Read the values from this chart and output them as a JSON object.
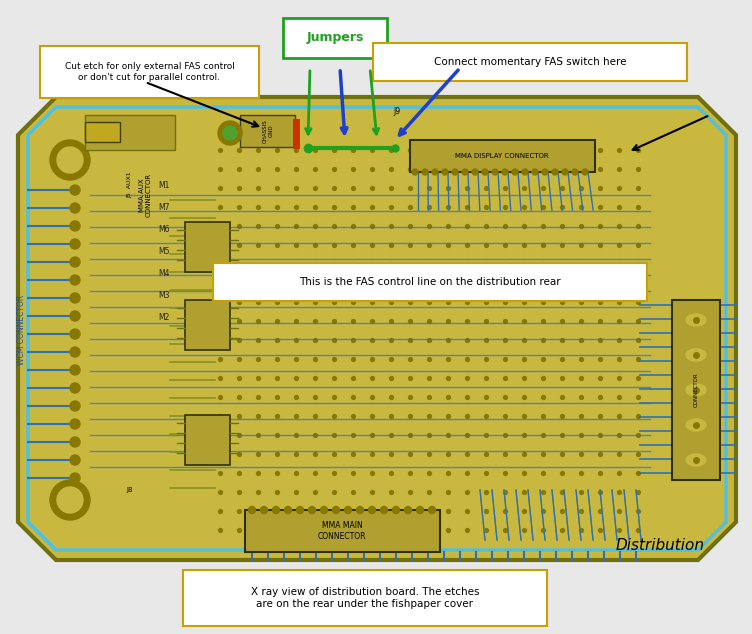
{
  "bg_color": "#e8e8e8",
  "board_color": "#c8b840",
  "board_edge": "#707010",
  "blue_trace": "#3070b0",
  "olive_trace": "#8a9020",
  "via_color": "#887800",
  "annotation_jumpers": "Jumpers",
  "annotation_cut_etch": "Cut etch for only external FAS control\nor don't cut for parallel control.",
  "annotation_connect": "Connect momentary FAS switch here",
  "annotation_fas_line": "This is the FAS control line on the distribution rear",
  "annotation_xray": "X ray view of distribution board. The etches\nare on the rear under the fishpaper cover",
  "label_distribution": "Distribution",
  "label_mma_main": "MMA MAIN\nCONNECTOR",
  "label_mma_display": "MMA DISPLAY CONNECTOR",
  "label_mma_aux": "MMA AUX\nCONNECTOR",
  "label_wcm": "WCM CONNECTOR",
  "label_chassis": "CHASSIS\nGND",
  "label_j9": "J9",
  "label_j5_aux1": "J5  AUX1",
  "relay_labels": [
    "M7",
    "M6",
    "M5",
    "M4",
    "M3",
    "M2"
  ],
  "label_m1": "M1",
  "label_j8": "J8"
}
